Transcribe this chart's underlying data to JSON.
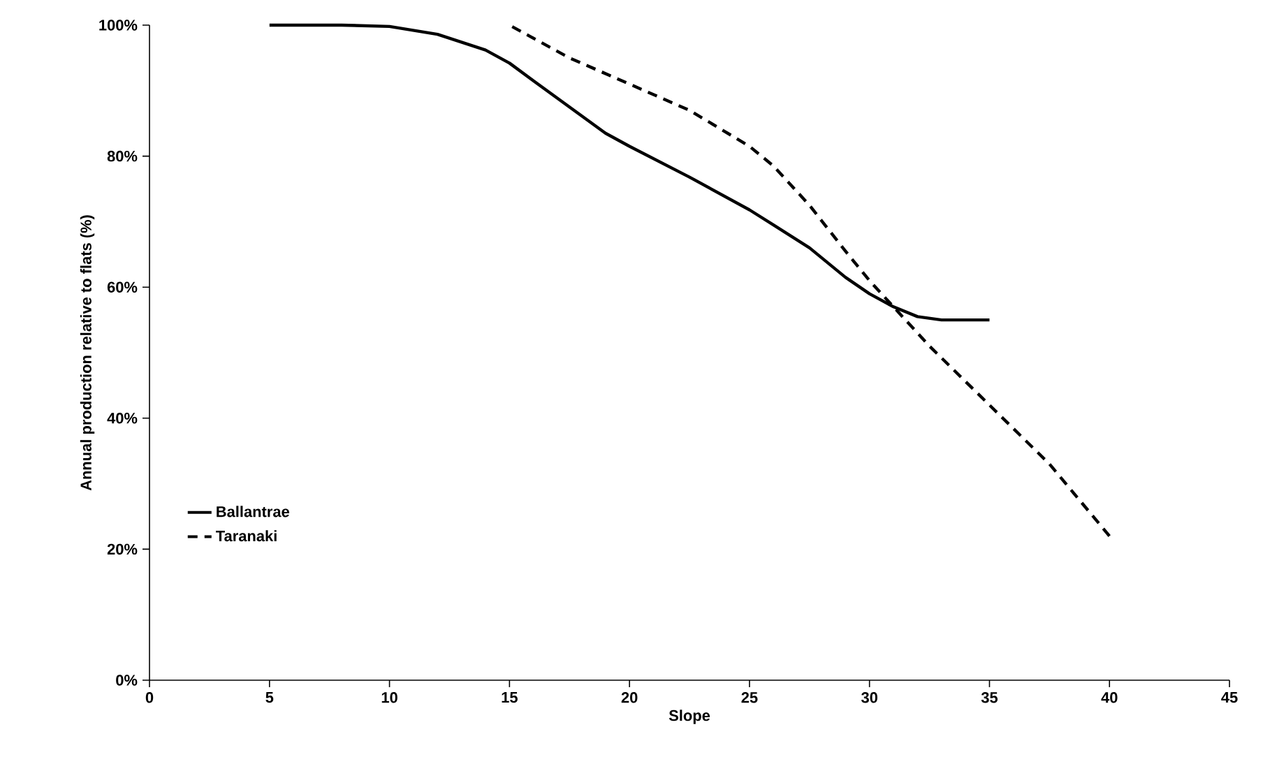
{
  "chart_data": {
    "type": "line",
    "xlabel": "Slope",
    "ylabel": "Annual production relative to flats (%)",
    "xlim": [
      0,
      45
    ],
    "xticks": [
      0,
      5,
      10,
      15,
      20,
      25,
      30,
      35,
      40,
      45
    ],
    "ylim": [
      0,
      100
    ],
    "yticks": [
      {
        "value": 0,
        "label": "0%"
      },
      {
        "value": 20,
        "label": "20%"
      },
      {
        "value": 40,
        "label": "40%"
      },
      {
        "value": 60,
        "label": "60%"
      },
      {
        "value": 80,
        "label": "80%"
      },
      {
        "value": 100,
        "label": "100%"
      }
    ],
    "legend": "bottom left",
    "grid": false,
    "marker": "none",
    "series": [
      {
        "name": "Ballantrae",
        "color": "#000000",
        "line_style": "solid",
        "x": [
          5,
          6,
          8,
          10,
          12,
          14,
          15,
          16,
          17.5,
          19,
          20,
          22.5,
          25,
          26,
          27.5,
          29,
          30,
          31,
          32,
          33,
          35
        ],
        "values": [
          100,
          100,
          100,
          99.8,
          98.6,
          96.2,
          94.2,
          91.5,
          87.5,
          83.5,
          81.5,
          76.8,
          71.8,
          69.5,
          66,
          61.5,
          59,
          57,
          55.5,
          55,
          55
        ]
      },
      {
        "name": "Taranaki",
        "color": "#000000",
        "line_style": "dashed",
        "x": [
          15,
          17.5,
          20,
          22.5,
          25,
          26,
          27.5,
          29,
          30,
          31,
          32.5,
          35,
          37.5,
          40
        ],
        "values": [
          100,
          95,
          91,
          87,
          81.5,
          78.5,
          72.5,
          65.5,
          61,
          57,
          51,
          42,
          33,
          22
        ]
      }
    ]
  }
}
